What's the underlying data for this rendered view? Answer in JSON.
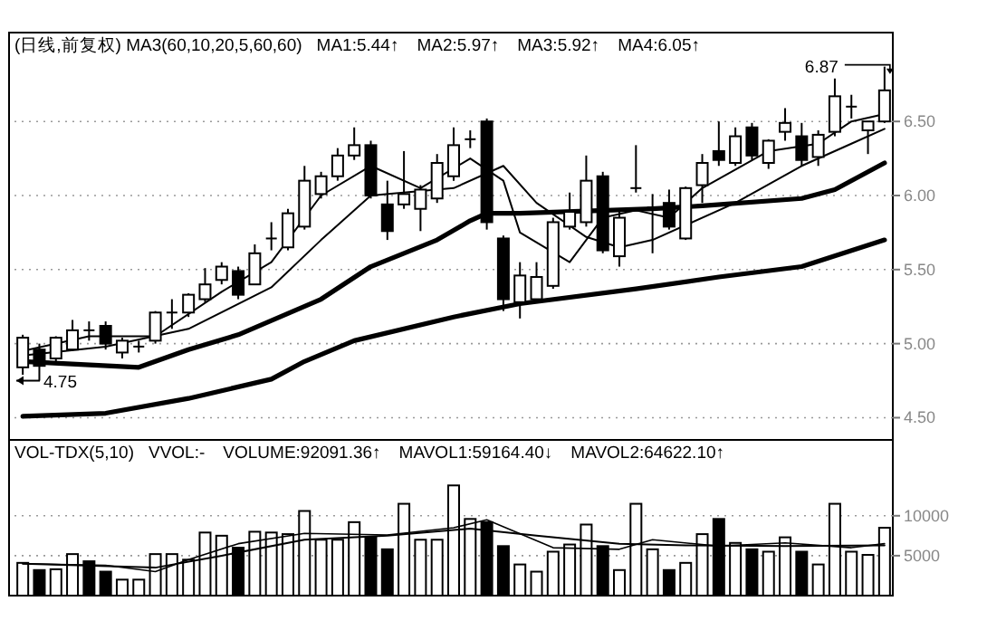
{
  "chart_data": [
    {
      "type": "candlestick",
      "title": "(日线,前复权) MA3(60,10,20,5,60,60)",
      "annotations": [
        "MA1:5.44↑",
        "MA2:5.97↑",
        "MA3:5.92↑",
        "MA4:6.05↑",
        "4.75",
        "6.87"
      ],
      "categories": [
        null,
        null,
        null,
        null,
        null,
        null,
        null,
        null,
        null,
        null,
        null,
        null,
        null,
        null,
        null,
        null,
        null,
        null,
        null,
        null,
        null,
        null,
        null,
        null,
        null,
        null,
        null,
        null,
        null,
        null,
        null,
        null,
        null,
        null,
        null,
        null,
        null,
        null,
        null,
        null,
        null,
        null,
        null,
        null,
        null,
        null,
        null,
        null,
        null,
        null,
        null,
        null,
        null
      ],
      "ohlc": [
        [
          4.84,
          5.06,
          4.79,
          5.04
        ],
        [
          4.96,
          5.0,
          4.75,
          4.85
        ],
        [
          4.9,
          5.05,
          4.88,
          5.04
        ],
        [
          4.96,
          5.16,
          4.95,
          5.09
        ],
        [
          5.09,
          5.15,
          5.02,
          5.09
        ],
        [
          5.12,
          5.15,
          4.96,
          5.0
        ],
        [
          4.94,
          5.04,
          4.9,
          5.02
        ],
        [
          4.98,
          5.02,
          4.94,
          4.98
        ],
        [
          5.02,
          5.22,
          5.0,
          5.21
        ],
        [
          5.21,
          5.3,
          5.1,
          5.21
        ],
        [
          5.21,
          5.34,
          5.18,
          5.33
        ],
        [
          5.3,
          5.51,
          5.28,
          5.4
        ],
        [
          5.43,
          5.55,
          5.4,
          5.52
        ],
        [
          5.49,
          5.52,
          5.3,
          5.33
        ],
        [
          5.4,
          5.67,
          5.4,
          5.61
        ],
        [
          5.71,
          5.82,
          5.63,
          5.71
        ],
        [
          5.65,
          5.91,
          5.63,
          5.88
        ],
        [
          5.79,
          6.2,
          5.77,
          6.1
        ],
        [
          6.01,
          6.16,
          5.98,
          6.13
        ],
        [
          6.13,
          6.32,
          6.1,
          6.27
        ],
        [
          6.27,
          6.46,
          6.24,
          6.34
        ],
        [
          6.34,
          6.37,
          5.98,
          6.0
        ],
        [
          5.94,
          6.1,
          5.7,
          5.76
        ],
        [
          5.94,
          6.3,
          5.91,
          6.01
        ],
        [
          5.91,
          6.07,
          5.76,
          6.04
        ],
        [
          5.98,
          6.28,
          5.95,
          6.22
        ],
        [
          6.13,
          6.46,
          6.1,
          6.34
        ],
        [
          6.38,
          6.44,
          6.32,
          6.38
        ],
        [
          6.5,
          6.52,
          5.77,
          5.82
        ],
        [
          5.71,
          5.73,
          5.22,
          5.3
        ],
        [
          5.28,
          5.55,
          5.17,
          5.46
        ],
        [
          5.3,
          5.55,
          5.28,
          5.45
        ],
        [
          5.39,
          5.85,
          5.37,
          5.82
        ],
        [
          5.79,
          6.02,
          5.77,
          5.89
        ],
        [
          5.82,
          6.27,
          5.79,
          6.1
        ],
        [
          6.13,
          6.16,
          5.61,
          5.63
        ],
        [
          5.59,
          5.91,
          5.52,
          5.85
        ],
        [
          6.05,
          6.34,
          6.02,
          6.05
        ],
        [
          5.91,
          6.01,
          5.61,
          5.92
        ],
        [
          5.95,
          6.04,
          5.77,
          5.79
        ],
        [
          5.71,
          6.06,
          5.7,
          6.05
        ],
        [
          6.07,
          6.28,
          5.95,
          6.22
        ],
        [
          6.3,
          6.5,
          6.2,
          6.24
        ],
        [
          6.22,
          6.46,
          6.2,
          6.4
        ],
        [
          6.46,
          6.49,
          6.24,
          6.27
        ],
        [
          6.22,
          6.38,
          6.18,
          6.37
        ],
        [
          6.43,
          6.59,
          6.37,
          6.49
        ],
        [
          6.4,
          6.49,
          6.2,
          6.24
        ],
        [
          6.26,
          6.44,
          6.2,
          6.41
        ],
        [
          6.43,
          6.79,
          6.4,
          6.67
        ],
        [
          6.6,
          6.68,
          6.52,
          6.6
        ],
        [
          6.44,
          6.5,
          6.28,
          6.5
        ],
        [
          6.5,
          6.87,
          6.49,
          6.71
        ]
      ],
      "series": [
        {
          "type": "line",
          "color": "#000000",
          "values": [
            4.95,
            null,
            null,
            null,
            5.05,
            null,
            null,
            null,
            5.05,
            null,
            null,
            null,
            5.35,
            null,
            null,
            5.55,
            null,
            null,
            6.0,
            null,
            null,
            6.2,
            null,
            null,
            6.05,
            null,
            null,
            6.25,
            null,
            6.1,
            5.75,
            null,
            null,
            5.55,
            null,
            5.85,
            null,
            5.9,
            null,
            5.85,
            null,
            6.05,
            null,
            null,
            null,
            6.3,
            null,
            null,
            6.35,
            null,
            6.5,
            null,
            6.55
          ]
        },
        {
          "type": "line",
          "color": "#000000",
          "values": [
            4.92,
            null,
            null,
            null,
            null,
            4.98,
            null,
            null,
            null,
            null,
            5.1,
            null,
            null,
            null,
            null,
            5.38,
            null,
            null,
            5.7,
            null,
            null,
            6.0,
            null,
            null,
            null,
            null,
            6.05,
            null,
            null,
            6.2,
            null,
            5.95,
            null,
            null,
            5.72,
            null,
            5.65,
            null,
            5.7,
            null,
            null,
            null,
            null,
            5.95,
            null,
            null,
            null,
            6.2,
            null,
            null,
            6.35,
            null,
            6.45
          ]
        },
        {
          "type": "line",
          "color": "#000000",
          "values": [
            4.88,
            null,
            null,
            null,
            null,
            null,
            null,
            4.84,
            null,
            null,
            4.96,
            null,
            null,
            5.06,
            null,
            null,
            null,
            null,
            5.3,
            null,
            null,
            5.52,
            null,
            null,
            null,
            5.7,
            null,
            5.83,
            5.88,
            null,
            5.88,
            null,
            null,
            null,
            null,
            null,
            null,
            null,
            5.91,
            null,
            null,
            5.93,
            null,
            null,
            null,
            null,
            null,
            5.98,
            null,
            6.04,
            null,
            null,
            6.22
          ]
        },
        {
          "type": "line",
          "color": "#000000",
          "values": [
            4.51,
            null,
            null,
            null,
            null,
            4.53,
            null,
            null,
            null,
            null,
            4.63,
            null,
            null,
            null,
            null,
            4.76,
            null,
            4.88,
            null,
            null,
            5.02,
            null,
            null,
            null,
            null,
            null,
            5.18,
            null,
            null,
            null,
            5.27,
            null,
            null,
            null,
            null,
            null,
            null,
            5.37,
            null,
            null,
            null,
            null,
            5.45,
            null,
            null,
            null,
            null,
            5.52,
            null,
            null,
            null,
            null,
            5.7
          ]
        }
      ],
      "ylim": [
        4.35,
        7.1
      ],
      "yticks": [
        {
          "value": 4.5,
          "label": "4.50"
        },
        {
          "value": 5,
          "label": "5.00"
        },
        {
          "value": 5.5,
          "label": "5.50"
        },
        {
          "value": 6,
          "label": "6.00"
        },
        {
          "value": 6.5,
          "label": "6.50"
        }
      ],
      "grid": "y"
    },
    {
      "type": "bar",
      "title": "VOL-TDX(5,10)",
      "annotations": [
        "VVOL:-",
        "VOLUME:92091.36↑",
        "MAVOL1:59164.40↓",
        "MAVOL2:64622.10↑"
      ],
      "categories": [
        null,
        null,
        null,
        null,
        null,
        null,
        null,
        null,
        null,
        null,
        null,
        null,
        null,
        null,
        null,
        null,
        null,
        null,
        null,
        null,
        null,
        null,
        null,
        null,
        null,
        null,
        null,
        null,
        null,
        null,
        null,
        null,
        null,
        null,
        null,
        null,
        null,
        null,
        null,
        null,
        null,
        null,
        null,
        null,
        null,
        null,
        null,
        null,
        null,
        null,
        null,
        null,
        null
      ],
      "series": [
        {
          "type": "bar",
          "colors": [
            "#ffffff",
            "#000000",
            "#ffffff",
            "#ffffff",
            "#000000",
            "#000000",
            "#ffffff",
            "#ffffff",
            "#ffffff",
            "#ffffff",
            "#ffffff",
            "#ffffff",
            "#ffffff",
            "#000000",
            "#ffffff",
            "#ffffff",
            "#ffffff",
            "#ffffff",
            "#ffffff",
            "#ffffff",
            "#ffffff",
            "#000000",
            "#000000",
            "#ffffff",
            "#ffffff",
            "#ffffff",
            "#ffffff",
            "#ffffff",
            "#000000",
            "#000000",
            "#ffffff",
            "#ffffff",
            "#ffffff",
            "#ffffff",
            "#ffffff",
            "#000000",
            "#ffffff",
            "#ffffff",
            "#ffffff",
            "#000000",
            "#ffffff",
            "#ffffff",
            "#000000",
            "#ffffff",
            "#000000",
            "#ffffff",
            "#ffffff",
            "#000000",
            "#ffffff",
            "#ffffff",
            "#ffffff",
            "#ffffff",
            "#ffffff"
          ],
          "values": [
            4100,
            3200,
            3300,
            5200,
            4300,
            3000,
            2000,
            2000,
            5200,
            5200,
            4500,
            7900,
            7500,
            6000,
            8000,
            7900,
            7700,
            10600,
            7000,
            7000,
            9200,
            7300,
            5800,
            11500,
            7000,
            7000,
            13800,
            9600,
            9200,
            6200,
            3900,
            3000,
            5500,
            6400,
            8900,
            6200,
            3200,
            11500,
            5800,
            3200,
            4100,
            7700,
            9600,
            6600,
            5800,
            5500,
            7300,
            5500,
            3900,
            11500,
            5500,
            5100,
            8500
          ]
        },
        {
          "type": "line",
          "color": "#000000",
          "values": [
            4000,
            null,
            null,
            null,
            null,
            3800,
            null,
            null,
            3000,
            null,
            4500,
            null,
            null,
            6500,
            null,
            null,
            null,
            7800,
            null,
            null,
            null,
            null,
            7600,
            null,
            null,
            null,
            8500,
            null,
            9500,
            null,
            null,
            null,
            6000,
            null,
            null,
            null,
            5800,
            null,
            7000,
            null,
            null,
            null,
            6200,
            null,
            null,
            null,
            6600,
            null,
            null,
            null,
            6000,
            null,
            6500
          ]
        },
        {
          "type": "line",
          "color": "#000000",
          "values": [
            4000,
            null,
            null,
            null,
            null,
            null,
            null,
            null,
            3500,
            null,
            null,
            null,
            5000,
            null,
            null,
            null,
            null,
            7000,
            null,
            null,
            null,
            null,
            7500,
            null,
            null,
            null,
            null,
            8400,
            null,
            null,
            null,
            7500,
            null,
            null,
            null,
            null,
            6500,
            null,
            null,
            null,
            6300,
            null,
            null,
            null,
            null,
            null,
            6200,
            null,
            null,
            null,
            null,
            null,
            6300
          ]
        }
      ],
      "ylim": [
        0,
        19500
      ],
      "yticks": [
        5000,
        10000
      ],
      "grid": "y"
    }
  ]
}
